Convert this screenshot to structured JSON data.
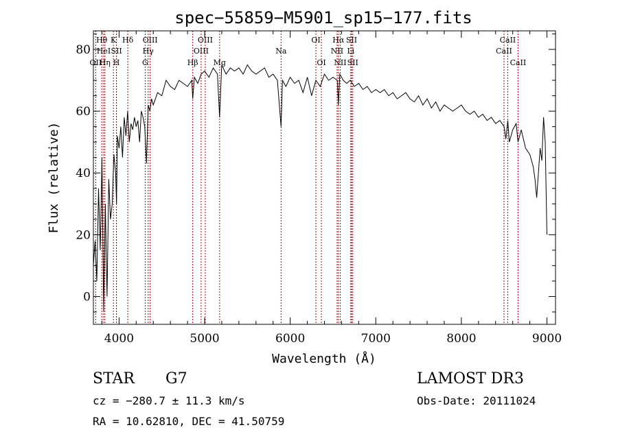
{
  "chart_data": {
    "type": "line",
    "title": "spec−55859−M5901_sp15−177.fits",
    "xlabel": "Wavelength (Å)",
    "ylabel": "Flux (relative)",
    "xlim": [
      3700,
      9100
    ],
    "ylim": [
      -9,
      86
    ],
    "x_ticks": [
      4000,
      5000,
      6000,
      7000,
      8000,
      9000
    ],
    "y_ticks": [
      0,
      20,
      40,
      60,
      80
    ],
    "grid": false,
    "spectrum": {
      "x": [
        3700,
        3720,
        3740,
        3760,
        3780,
        3800,
        3820,
        3840,
        3860,
        3880,
        3900,
        3920,
        3940,
        3960,
        3970,
        3980,
        4000,
        4020,
        4040,
        4060,
        4080,
        4100,
        4120,
        4140,
        4160,
        4180,
        4200,
        4220,
        4240,
        4260,
        4280,
        4300,
        4320,
        4340,
        4360,
        4380,
        4400,
        4450,
        4500,
        4550,
        4600,
        4650,
        4700,
        4750,
        4800,
        4850,
        4861,
        4880,
        4920,
        4960,
        5000,
        5050,
        5100,
        5150,
        5175,
        5200,
        5250,
        5300,
        5350,
        5400,
        5450,
        5500,
        5550,
        5600,
        5650,
        5700,
        5750,
        5800,
        5850,
        5893,
        5910,
        5950,
        6000,
        6050,
        6100,
        6150,
        6200,
        6250,
        6300,
        6350,
        6400,
        6450,
        6500,
        6550,
        6563,
        6580,
        6620,
        6660,
        6700,
        6750,
        6800,
        6850,
        6900,
        6950,
        7000,
        7050,
        7100,
        7150,
        7200,
        7250,
        7300,
        7350,
        7400,
        7450,
        7500,
        7550,
        7600,
        7650,
        7700,
        7750,
        7800,
        7850,
        7900,
        7950,
        8000,
        8050,
        8100,
        8150,
        8200,
        8250,
        8300,
        8350,
        8400,
        8450,
        8500,
        8520,
        8542,
        8560,
        8600,
        8640,
        8662,
        8700,
        8750,
        8800,
        8840,
        8860,
        8880,
        8900,
        8920,
        8940,
        8960,
        8980,
        9000
      ],
      "y": [
        10,
        18,
        5,
        35,
        15,
        45,
        -5,
        30,
        0,
        38,
        25,
        30,
        46,
        40,
        30,
        52,
        48,
        55,
        45,
        58,
        52,
        60,
        50,
        56,
        54,
        58,
        55,
        57,
        50,
        60,
        58,
        55,
        43,
        62,
        60,
        64,
        62,
        66,
        65,
        70,
        68,
        67,
        70,
        69,
        68,
        70,
        64,
        71,
        69,
        72,
        73,
        71,
        74,
        72,
        58,
        75,
        72,
        74,
        73,
        74,
        72,
        75,
        73,
        72,
        73,
        74,
        71,
        72,
        70,
        55,
        70,
        68,
        71,
        69,
        70,
        66,
        71,
        65,
        70,
        68,
        72,
        70,
        71,
        70,
        62,
        72,
        70,
        69,
        70,
        68,
        69,
        67,
        68,
        66,
        67,
        66,
        67,
        65,
        66,
        64,
        65,
        66,
        64,
        63,
        65,
        62,
        64,
        61,
        63,
        60,
        62,
        61,
        60,
        61,
        62,
        60,
        59,
        60,
        58,
        59,
        57,
        58,
        56,
        57,
        55,
        51,
        57,
        50,
        54,
        56,
        50,
        54,
        48,
        46,
        42,
        38,
        32,
        40,
        48,
        44,
        58,
        50,
        20
      ],
      "color": "#000000"
    },
    "lines": [
      {
        "label": "Hθ",
        "x": 3798,
        "row": 1
      },
      {
        "label": "HeI",
        "x": 3820,
        "row": 2
      },
      {
        "label": "OII",
        "x": 3727,
        "row": 3
      },
      {
        "label": "Hη",
        "x": 3835,
        "row": 3
      },
      {
        "label": "K",
        "x": 3934,
        "row": 1
      },
      {
        "label": "SII",
        "x": 3970,
        "row": 2
      },
      {
        "label": "H",
        "x": 3969,
        "row": 3
      },
      {
        "label": "Hδ",
        "x": 4102,
        "row": 1
      },
      {
        "label": "OIII",
        "x": 4363,
        "row": 1
      },
      {
        "label": "Hγ",
        "x": 4340,
        "row": 2
      },
      {
        "label": "G",
        "x": 4305,
        "row": 3
      },
      {
        "label": "Hβ",
        "x": 4861,
        "row": 3
      },
      {
        "label": "OIII",
        "x": 5007,
        "row": 1
      },
      {
        "label": "OIII",
        "x": 4959,
        "row": 2
      },
      {
        "label": "Mg",
        "x": 5175,
        "row": 3
      },
      {
        "label": "Na",
        "x": 5893,
        "row": 2
      },
      {
        "label": "OI",
        "x": 6300,
        "row": 1
      },
      {
        "label": "OI",
        "x": 6364,
        "row": 3
      },
      {
        "label": "Hα",
        "x": 6563,
        "row": 1
      },
      {
        "label": "NII",
        "x": 6548,
        "row": 2
      },
      {
        "label": "NII",
        "x": 6584,
        "row": 3
      },
      {
        "label": "SII",
        "x": 6717,
        "row": 1
      },
      {
        "label": "Li",
        "x": 6708,
        "row": 2
      },
      {
        "label": "SII",
        "x": 6731,
        "row": 3
      },
      {
        "label": "CaII",
        "x": 8542,
        "row": 1
      },
      {
        "label": "CaII",
        "x": 8498,
        "row": 2
      },
      {
        "label": "CaII",
        "x": 8662,
        "row": 3
      }
    ],
    "line_color": "#b00000"
  },
  "info": {
    "object_class": "STAR",
    "subclass": "G7",
    "survey": "LAMOST DR3",
    "cz": "cz = −280.7 ± 11.3 km/s",
    "obs_date": "Obs-Date: 20111024",
    "coords": "RA =  10.62810, DEC =  41.50759"
  }
}
